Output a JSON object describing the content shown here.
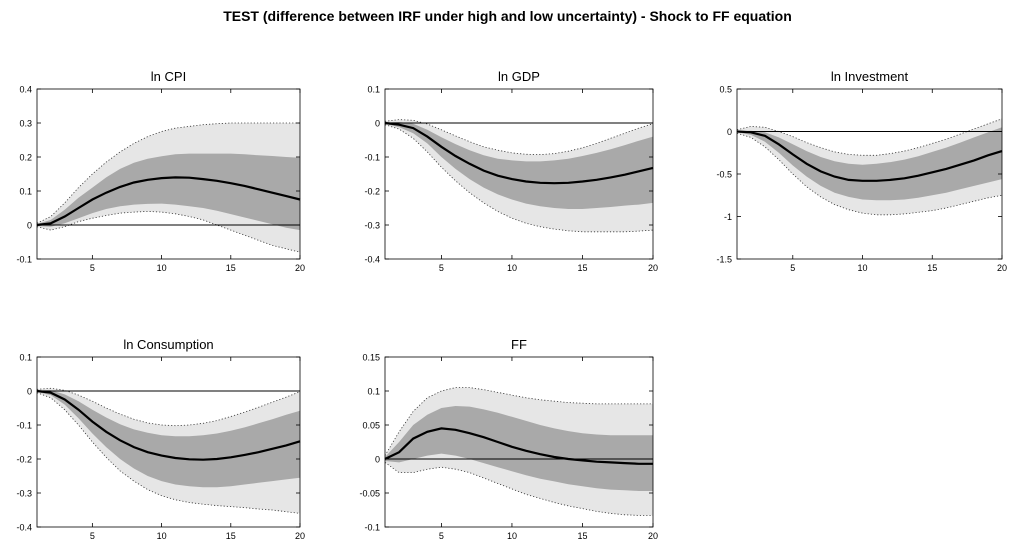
{
  "figure_title": "TEST (difference between IRF under high and low uncertainty) - Shock to FF equation",
  "colors": {
    "outer_band": "#e6e6e6",
    "inner_band": "#a9a9a9",
    "median": "#000000",
    "zero_line": "#000000",
    "dotted": "#333333"
  },
  "chart_data": [
    {
      "type": "area",
      "title": "ln CPI",
      "x": [
        1,
        2,
        3,
        4,
        5,
        6,
        7,
        8,
        9,
        10,
        11,
        12,
        13,
        14,
        15,
        16,
        17,
        18,
        19,
        20
      ],
      "xticks": [
        5,
        10,
        15,
        20
      ],
      "ylim": [
        -0.1,
        0.4
      ],
      "yticks": [
        "-0.1",
        "0",
        "0.1",
        "0.2",
        "0.3",
        "0.4"
      ],
      "median": [
        0,
        0.005,
        0.025,
        0.05,
        0.075,
        0.095,
        0.112,
        0.125,
        0.133,
        0.138,
        0.14,
        0.139,
        0.135,
        0.13,
        0.123,
        0.115,
        0.105,
        0.095,
        0.085,
        0.075
      ],
      "inner_lower": [
        -0.003,
        -0.005,
        0.005,
        0.02,
        0.035,
        0.047,
        0.055,
        0.06,
        0.062,
        0.063,
        0.06,
        0.055,
        0.05,
        0.042,
        0.032,
        0.022,
        0.012,
        0.002,
        -0.008,
        -0.015
      ],
      "inner_upper": [
        0.003,
        0.015,
        0.045,
        0.08,
        0.11,
        0.14,
        0.165,
        0.183,
        0.195,
        0.202,
        0.208,
        0.21,
        0.21,
        0.21,
        0.21,
        0.208,
        0.205,
        0.203,
        0.2,
        0.198
      ],
      "outer_lower": [
        -0.005,
        -0.015,
        -0.005,
        0.01,
        0.02,
        0.028,
        0.035,
        0.038,
        0.04,
        0.038,
        0.033,
        0.025,
        0.015,
        0.0,
        -0.015,
        -0.03,
        -0.045,
        -0.06,
        -0.07,
        -0.08
      ],
      "outer_upper": [
        0.005,
        0.025,
        0.065,
        0.11,
        0.15,
        0.185,
        0.215,
        0.24,
        0.26,
        0.275,
        0.285,
        0.29,
        0.295,
        0.298,
        0.3,
        0.3,
        0.3,
        0.3,
        0.3,
        0.3
      ]
    },
    {
      "type": "area",
      "title": "ln GDP",
      "x": [
        1,
        2,
        3,
        4,
        5,
        6,
        7,
        8,
        9,
        10,
        11,
        12,
        13,
        14,
        15,
        16,
        17,
        18,
        19,
        20
      ],
      "xticks": [
        5,
        10,
        15,
        20
      ],
      "ylim": [
        -0.4,
        0.1
      ],
      "yticks": [
        "-0.4",
        "-0.3",
        "-0.2",
        "-0.1",
        "0",
        "0.1"
      ],
      "median": [
        0,
        -0.005,
        -0.015,
        -0.04,
        -0.07,
        -0.097,
        -0.12,
        -0.14,
        -0.155,
        -0.165,
        -0.172,
        -0.176,
        -0.177,
        -0.176,
        -0.172,
        -0.167,
        -0.16,
        -0.152,
        -0.142,
        -0.132
      ],
      "inner_lower": [
        -0.003,
        -0.012,
        -0.03,
        -0.06,
        -0.1,
        -0.135,
        -0.165,
        -0.19,
        -0.21,
        -0.225,
        -0.237,
        -0.245,
        -0.25,
        -0.253,
        -0.253,
        -0.25,
        -0.247,
        -0.243,
        -0.24,
        -0.235
      ],
      "inner_upper": [
        0.003,
        0.003,
        -0.002,
        -0.02,
        -0.042,
        -0.062,
        -0.08,
        -0.095,
        -0.105,
        -0.11,
        -0.113,
        -0.113,
        -0.11,
        -0.105,
        -0.097,
        -0.088,
        -0.077,
        -0.065,
        -0.052,
        -0.04
      ],
      "outer_lower": [
        -0.005,
        -0.018,
        -0.045,
        -0.085,
        -0.13,
        -0.17,
        -0.205,
        -0.235,
        -0.26,
        -0.28,
        -0.295,
        -0.305,
        -0.312,
        -0.317,
        -0.32,
        -0.32,
        -0.32,
        -0.32,
        -0.318,
        -0.315
      ],
      "outer_upper": [
        0.005,
        0.01,
        0.008,
        -0.003,
        -0.02,
        -0.038,
        -0.055,
        -0.07,
        -0.08,
        -0.088,
        -0.092,
        -0.093,
        -0.09,
        -0.083,
        -0.073,
        -0.06,
        -0.045,
        -0.03,
        -0.015,
        -0.002
      ]
    },
    {
      "type": "area",
      "title": "ln Investment",
      "x": [
        1,
        2,
        3,
        4,
        5,
        6,
        7,
        8,
        9,
        10,
        11,
        12,
        13,
        14,
        15,
        16,
        17,
        18,
        19,
        20
      ],
      "xticks": [
        5,
        10,
        15,
        20
      ],
      "ylim": [
        -1.5,
        0.5
      ],
      "yticks": [
        "-1.5",
        "-1",
        "-0.5",
        "0",
        "0.5"
      ],
      "median": [
        0,
        -0.01,
        -0.05,
        -0.15,
        -0.27,
        -0.38,
        -0.47,
        -0.53,
        -0.57,
        -0.58,
        -0.58,
        -0.57,
        -0.55,
        -0.52,
        -0.48,
        -0.44,
        -0.39,
        -0.34,
        -0.28,
        -0.23
      ],
      "inner_lower": [
        -0.01,
        -0.04,
        -0.12,
        -0.25,
        -0.4,
        -0.53,
        -0.64,
        -0.72,
        -0.77,
        -0.8,
        -0.81,
        -0.81,
        -0.8,
        -0.78,
        -0.75,
        -0.72,
        -0.68,
        -0.64,
        -0.6,
        -0.56
      ],
      "inner_upper": [
        0.01,
        0.01,
        -0.01,
        -0.07,
        -0.15,
        -0.23,
        -0.3,
        -0.35,
        -0.38,
        -0.39,
        -0.38,
        -0.36,
        -0.33,
        -0.29,
        -0.24,
        -0.19,
        -0.13,
        -0.07,
        -0.01,
        0.05
      ],
      "outer_lower": [
        -0.02,
        -0.07,
        -0.18,
        -0.33,
        -0.5,
        -0.65,
        -0.77,
        -0.86,
        -0.92,
        -0.96,
        -0.98,
        -0.98,
        -0.97,
        -0.95,
        -0.93,
        -0.9,
        -0.86,
        -0.82,
        -0.78,
        -0.75
      ],
      "outer_upper": [
        0.02,
        0.06,
        0.05,
        0.0,
        -0.06,
        -0.13,
        -0.19,
        -0.24,
        -0.27,
        -0.28,
        -0.28,
        -0.26,
        -0.23,
        -0.19,
        -0.14,
        -0.09,
        -0.03,
        0.03,
        0.09,
        0.15
      ]
    },
    {
      "type": "area",
      "title": "ln Consumption",
      "x": [
        1,
        2,
        3,
        4,
        5,
        6,
        7,
        8,
        9,
        10,
        11,
        12,
        13,
        14,
        15,
        16,
        17,
        18,
        19,
        20
      ],
      "xticks": [
        5,
        10,
        15,
        20
      ],
      "ylim": [
        -0.4,
        0.1
      ],
      "yticks": [
        "-0.4",
        "-0.3",
        "-0.2",
        "-0.1",
        "0",
        "0.1"
      ],
      "median": [
        0,
        -0.005,
        -0.025,
        -0.055,
        -0.09,
        -0.12,
        -0.145,
        -0.165,
        -0.18,
        -0.19,
        -0.197,
        -0.201,
        -0.202,
        -0.2,
        -0.195,
        -0.188,
        -0.18,
        -0.17,
        -0.16,
        -0.148
      ],
      "inner_lower": [
        -0.003,
        -0.012,
        -0.04,
        -0.08,
        -0.125,
        -0.165,
        -0.2,
        -0.228,
        -0.25,
        -0.265,
        -0.275,
        -0.28,
        -0.283,
        -0.283,
        -0.28,
        -0.275,
        -0.27,
        -0.265,
        -0.26,
        -0.255
      ],
      "inner_upper": [
        0.003,
        0.002,
        -0.01,
        -0.03,
        -0.055,
        -0.078,
        -0.098,
        -0.113,
        -0.123,
        -0.13,
        -0.133,
        -0.133,
        -0.13,
        -0.125,
        -0.117,
        -0.107,
        -0.095,
        -0.083,
        -0.07,
        -0.058
      ],
      "outer_lower": [
        -0.005,
        -0.02,
        -0.055,
        -0.1,
        -0.15,
        -0.195,
        -0.235,
        -0.265,
        -0.29,
        -0.308,
        -0.32,
        -0.328,
        -0.333,
        -0.337,
        -0.34,
        -0.343,
        -0.347,
        -0.35,
        -0.355,
        -0.36
      ],
      "outer_upper": [
        0.005,
        0.008,
        0.002,
        -0.012,
        -0.03,
        -0.05,
        -0.068,
        -0.083,
        -0.094,
        -0.1,
        -0.102,
        -0.1,
        -0.095,
        -0.087,
        -0.075,
        -0.062,
        -0.048,
        -0.033,
        -0.018,
        -0.002
      ]
    },
    {
      "type": "area",
      "title": "FF",
      "x": [
        1,
        2,
        3,
        4,
        5,
        6,
        7,
        8,
        9,
        10,
        11,
        12,
        13,
        14,
        15,
        16,
        17,
        18,
        19,
        20
      ],
      "xticks": [
        5,
        10,
        15,
        20
      ],
      "ylim": [
        -0.1,
        0.15
      ],
      "yticks": [
        "-0.1",
        "-0.05",
        "0",
        "0.05",
        "0.1",
        "0.15"
      ],
      "median": [
        0,
        0.01,
        0.03,
        0.04,
        0.045,
        0.043,
        0.038,
        0.032,
        0.025,
        0.018,
        0.012,
        0.007,
        0.003,
        0.0,
        -0.002,
        -0.004,
        -0.005,
        -0.006,
        -0.007,
        -0.007
      ],
      "inner_lower": [
        -0.003,
        -0.005,
        0.0,
        0.005,
        0.008,
        0.005,
        0.0,
        -0.006,
        -0.012,
        -0.018,
        -0.024,
        -0.029,
        -0.033,
        -0.037,
        -0.04,
        -0.043,
        -0.045,
        -0.046,
        -0.047,
        -0.047
      ],
      "inner_upper": [
        0.003,
        0.025,
        0.05,
        0.065,
        0.075,
        0.078,
        0.077,
        0.073,
        0.068,
        0.062,
        0.056,
        0.05,
        0.045,
        0.041,
        0.038,
        0.036,
        0.035,
        0.035,
        0.035,
        0.035
      ],
      "outer_lower": [
        -0.005,
        -0.02,
        -0.02,
        -0.015,
        -0.012,
        -0.015,
        -0.02,
        -0.028,
        -0.036,
        -0.044,
        -0.052,
        -0.058,
        -0.064,
        -0.069,
        -0.073,
        -0.077,
        -0.08,
        -0.082,
        -0.083,
        -0.083
      ],
      "outer_upper": [
        0.005,
        0.04,
        0.07,
        0.09,
        0.1,
        0.105,
        0.105,
        0.102,
        0.098,
        0.094,
        0.09,
        0.087,
        0.085,
        0.083,
        0.082,
        0.081,
        0.081,
        0.081,
        0.081,
        0.081
      ]
    }
  ]
}
